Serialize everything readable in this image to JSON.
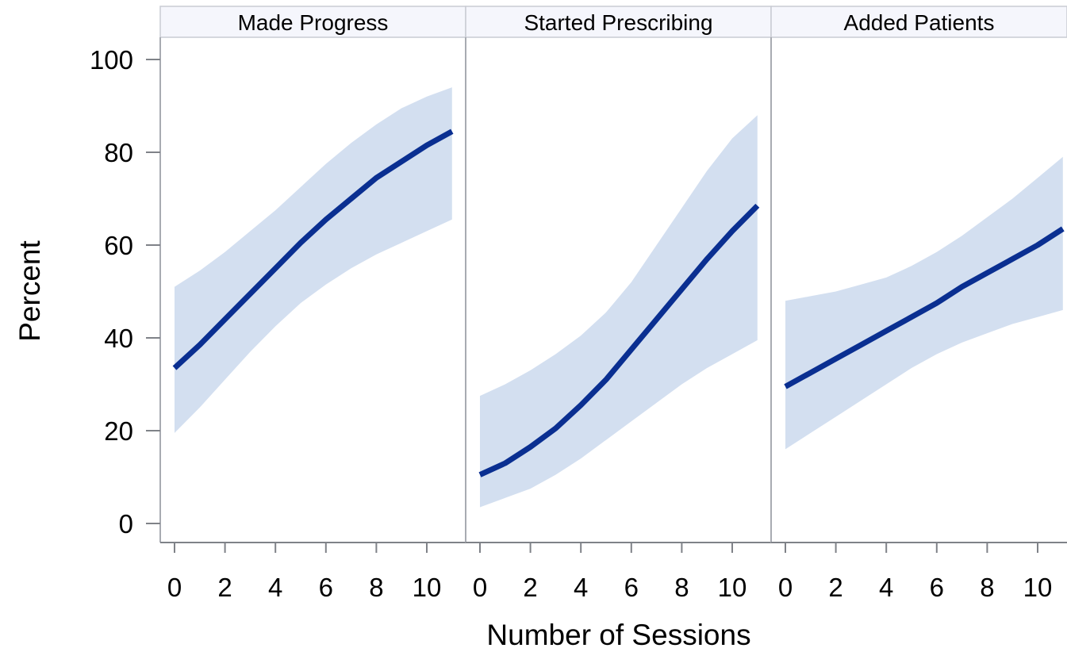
{
  "chart_data": {
    "type": "line",
    "xlabel": "Number of Sessions",
    "ylabel": "Percent",
    "xlim": [
      0,
      11
    ],
    "ylim": [
      0,
      100
    ],
    "x_ticks": [
      0,
      2,
      4,
      6,
      8,
      10
    ],
    "y_ticks": [
      0,
      20,
      40,
      60,
      80,
      100
    ],
    "grid": false,
    "line_color": "#0a2f91",
    "band_color": "#d3dff0",
    "header_fill": "#f5f6fc",
    "x": [
      0,
      1,
      2,
      3,
      4,
      5,
      6,
      7,
      8,
      9,
      10,
      11
    ],
    "panels": [
      {
        "title": "Made Progress",
        "estimate": [
          33.5,
          38.5,
          44,
          49.5,
          55,
          60.5,
          65.5,
          70,
          74.5,
          78,
          81.5,
          84.5
        ],
        "lower": [
          19.5,
          25,
          31,
          37,
          42.5,
          47.5,
          51.5,
          55,
          58,
          60.5,
          63,
          65.5
        ],
        "upper": [
          51,
          54.5,
          58.5,
          63,
          67.5,
          72.5,
          77.5,
          82,
          86,
          89.5,
          92,
          94
        ]
      },
      {
        "title": "Started Prescribing",
        "estimate": [
          10.5,
          13,
          16.5,
          20.5,
          25.5,
          31,
          37.5,
          44,
          50.5,
          57,
          63,
          68.5
        ],
        "lower": [
          3.5,
          5.5,
          7.5,
          10.5,
          14,
          18,
          22,
          26,
          30,
          33.5,
          36.5,
          39.5
        ],
        "upper": [
          27.5,
          30,
          33,
          36.5,
          40.5,
          45.5,
          52,
          60,
          68,
          76,
          83,
          88
        ]
      },
      {
        "title": "Added Patients",
        "estimate": [
          29.5,
          32.5,
          35.5,
          38.5,
          41.5,
          44.5,
          47.5,
          51,
          54,
          57,
          60,
          63.5
        ],
        "lower": [
          16,
          19.5,
          23,
          26.5,
          30,
          33.5,
          36.5,
          39,
          41,
          43,
          44.5,
          46
        ],
        "upper": [
          48,
          49,
          50,
          51.5,
          53,
          55.5,
          58.5,
          62,
          66,
          70,
          74.5,
          79
        ]
      }
    ]
  }
}
